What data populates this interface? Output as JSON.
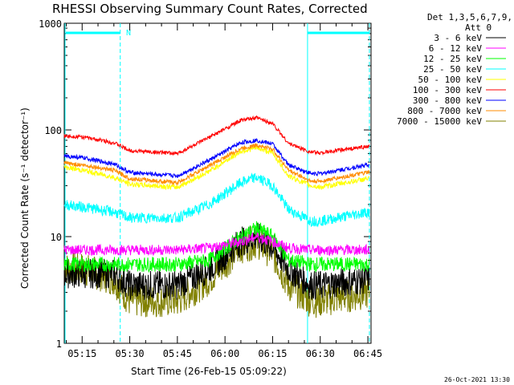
{
  "chart_data": {
    "type": "line",
    "title": "RHESSI Observing Summary Count Rates, Corrected",
    "xlabel": "Start Time (26-Feb-15 05:09:22)",
    "ylabel": "Corrected Count Rate (s⁻¹ detector⁻¹)",
    "yscale": "log",
    "ylim": [
      1,
      1000
    ],
    "xlim": [
      "05:09:22",
      "06:46:00"
    ],
    "x_ticks": [
      "05:15",
      "05:30",
      "05:45",
      "06:00",
      "06:15",
      "06:30",
      "06:45"
    ],
    "y_ticks": [
      "1",
      "10",
      "100",
      "1000"
    ],
    "legend_header": [
      "Det 1,3,5,6,7,9,",
      "Att 0"
    ],
    "legend_position": "right",
    "timestamp": "26-Oct-2021 13:30",
    "night_marker": "N",
    "x": [
      "05:09",
      "05:15",
      "05:25",
      "05:30",
      "05:45",
      "05:55",
      "06:05",
      "06:10",
      "06:15",
      "06:20",
      "06:27",
      "06:30",
      "06:45"
    ],
    "series": [
      {
        "name": "3 - 6 keV",
        "color": "#000000",
        "values": [
          4.5,
          4.5,
          4.5,
          3.5,
          3.5,
          5,
          9,
          10,
          8,
          5,
          3.5,
          3.5,
          4
        ]
      },
      {
        "name": "6 - 12 keV",
        "color": "#ff00ff",
        "values": [
          7.5,
          7.5,
          7.5,
          7.5,
          7.5,
          7.8,
          9,
          10,
          9,
          7.8,
          7.5,
          7.5,
          7.5
        ]
      },
      {
        "name": "12 - 25 keV",
        "color": "#00ff00",
        "values": [
          5.5,
          5.5,
          5.5,
          5.5,
          5.5,
          6,
          10,
          12,
          10,
          6,
          5.5,
          5.5,
          5.5
        ]
      },
      {
        "name": "25 - 50 keV",
        "color": "#00ffff",
        "values": [
          20,
          19,
          17,
          15,
          15,
          20,
          32,
          36,
          30,
          18,
          14,
          14,
          17
        ]
      },
      {
        "name": "50 - 100 keV",
        "color": "#ffff00",
        "values": [
          45,
          42,
          36,
          31,
          29,
          41,
          63,
          68,
          61,
          37,
          30,
          29,
          35
        ]
      },
      {
        "name": "100 - 300 keV",
        "color": "#ff0000",
        "values": [
          88,
          86,
          76,
          64,
          60,
          85,
          123,
          130,
          115,
          75,
          62,
          61,
          70
        ]
      },
      {
        "name": "300 - 800 keV",
        "color": "#0000ff",
        "values": [
          57,
          55,
          48,
          40,
          37,
          52,
          76,
          80,
          74,
          47,
          39,
          39,
          47
        ]
      },
      {
        "name": "800 - 7000 keV",
        "color": "#ff8c00",
        "values": [
          49,
          47,
          42,
          35,
          32,
          46,
          67,
          72,
          66,
          42,
          33,
          33,
          40
        ]
      },
      {
        "name": "7000 - 15000 keV",
        "color": "#808000",
        "values": [
          5,
          5,
          4,
          2.5,
          2.5,
          4,
          8,
          9,
          7,
          3.5,
          2.5,
          2.5,
          3
        ]
      }
    ]
  }
}
